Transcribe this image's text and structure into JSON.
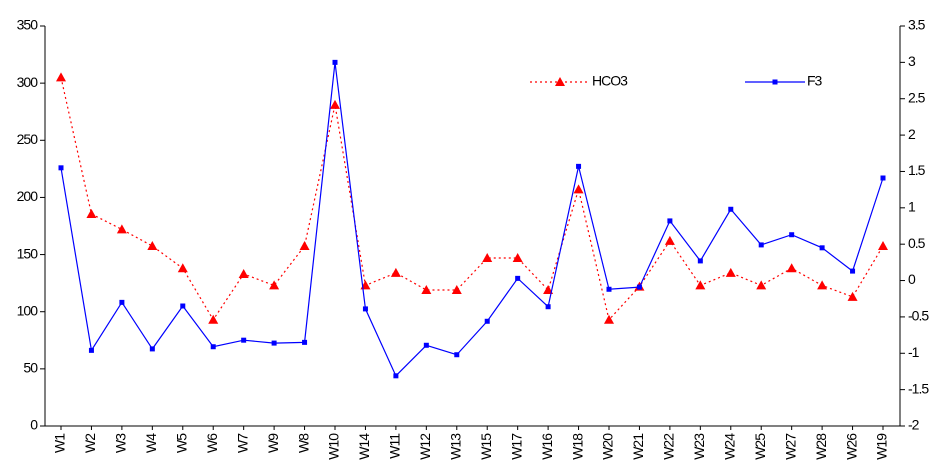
{
  "chart_data": {
    "type": "line",
    "categories": [
      "W1",
      "W2",
      "W3",
      "W4",
      "W5",
      "W6",
      "W7",
      "W9",
      "W8",
      "W10",
      "W14",
      "W11",
      "W12",
      "W13",
      "W15",
      "W17",
      "W16",
      "W18",
      "W20",
      "W21",
      "W22",
      "W23",
      "W24",
      "W25",
      "W27",
      "W28",
      "W26",
      "W19"
    ],
    "series": [
      {
        "name": "HCO3",
        "color": "#ff0000",
        "values": [
          305,
          185.5,
          172,
          157.5,
          138,
          93,
          133,
          123,
          157.5,
          281,
          123,
          134,
          119,
          119,
          147,
          147,
          119,
          207,
          93,
          122,
          162,
          123,
          134,
          123,
          138,
          123,
          113,
          157.5
        ]
      },
      {
        "name": "F3",
        "color": "#0000ff",
        "axis": "y2",
        "values": [
          1.55,
          -0.96,
          -0.3,
          -0.94,
          -0.35,
          -0.91,
          -0.82,
          -0.86,
          -0.85,
          3.0,
          -0.39,
          -1.31,
          -0.89,
          -1.02,
          -0.56,
          0.03,
          -0.36,
          1.57,
          -0.12,
          -0.09,
          0.82,
          0.27,
          0.98,
          0.49,
          0.63,
          0.45,
          0.13,
          1.41
        ]
      }
    ],
    "ylim": [
      0,
      350
    ],
    "yticks": [
      0,
      50,
      100,
      150,
      200,
      250,
      300,
      350
    ],
    "y2lim": [
      -2,
      3.5
    ],
    "y2ticks": [
      -2,
      -1.5,
      -1,
      -0.5,
      0,
      0.5,
      1,
      1.5,
      2,
      2.5,
      3,
      3.5
    ],
    "legend": "top-right"
  }
}
